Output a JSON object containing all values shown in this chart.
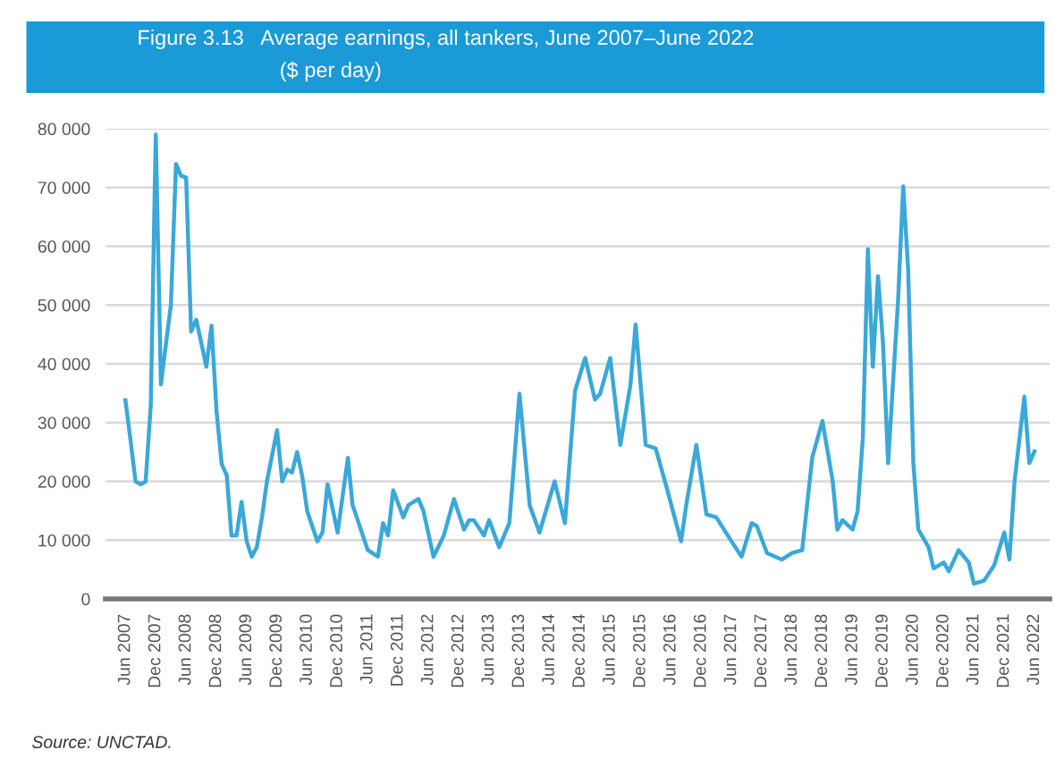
{
  "chart_data": {
    "type": "line",
    "title": "Figure 3.13   Average earnings, all tankers, June 2007–June 2022",
    "subtitle": "($ per day)",
    "annotations": [
      "Source: UNCTAD."
    ],
    "x": [
      "2007-06",
      "2007-07",
      "2007-08",
      "2007-09",
      "2007-10",
      "2007-11",
      "2007-12",
      "2008-01",
      "2008-02",
      "2008-03",
      "2008-04",
      "2008-05",
      "2008-06",
      "2008-07",
      "2008-08",
      "2008-09",
      "2008-10",
      "2008-11",
      "2008-12",
      "2009-01",
      "2009-02",
      "2009-03",
      "2009-04",
      "2009-05",
      "2009-06",
      "2009-07",
      "2009-08",
      "2009-09",
      "2009-10",
      "2009-12",
      "2010-01",
      "2010-02",
      "2010-03",
      "2010-04",
      "2010-05",
      "2010-06",
      "2010-08",
      "2010-09",
      "2010-10",
      "2010-12",
      "2011-02",
      "2011-03",
      "2011-04",
      "2011-06",
      "2011-08",
      "2011-09",
      "2011-10",
      "2011-11",
      "2012-01",
      "2012-02",
      "2012-04",
      "2012-05",
      "2012-07",
      "2012-09",
      "2012-11",
      "2013-01",
      "2013-02",
      "2013-03",
      "2013-05",
      "2013-06",
      "2013-08",
      "2013-10",
      "2013-12",
      "2014-02",
      "2014-04",
      "2014-07",
      "2014-09",
      "2014-11",
      "2015-01",
      "2015-03",
      "2015-04",
      "2015-06",
      "2015-08",
      "2015-10",
      "2015-11",
      "2016-01",
      "2016-03",
      "2016-05",
      "2016-08",
      "2016-09",
      "2016-11",
      "2017-01",
      "2017-03",
      "2017-06",
      "2017-08",
      "2017-10",
      "2017-11",
      "2018-01",
      "2018-04",
      "2018-06",
      "2018-08",
      "2018-10",
      "2018-12",
      "2019-02",
      "2019-03",
      "2019-04",
      "2019-06",
      "2019-07",
      "2019-08",
      "2019-09",
      "2019-10",
      "2019-11",
      "2019-12",
      "2020-01",
      "2020-03",
      "2020-04",
      "2020-05",
      "2020-06",
      "2020-07",
      "2020-09",
      "2020-10",
      "2020-12",
      "2021-01",
      "2021-03",
      "2021-05",
      "2021-06",
      "2021-08",
      "2021-10",
      "2021-12",
      "2022-01",
      "2022-02",
      "2022-04",
      "2022-05",
      "2022-06"
    ],
    "series": [
      {
        "color": "#3aa8d8",
        "values": [
          33800,
          27200,
          20000,
          19500,
          20000,
          33000,
          79000,
          36500,
          43500,
          50000,
          74000,
          72000,
          71700,
          45500,
          47500,
          43500,
          39500,
          46500,
          32000,
          23000,
          21000,
          10800,
          10800,
          16500,
          9800,
          7200,
          8800,
          13900,
          20000,
          28700,
          20000,
          22000,
          21500,
          25000,
          21000,
          14900,
          9800,
          11300,
          19500,
          11300,
          24000,
          16000,
          13400,
          8300,
          7200,
          12900,
          10800,
          18500,
          13900,
          16000,
          17000,
          15000,
          7200,
          10800,
          17000,
          11800,
          13400,
          13400,
          10800,
          13400,
          8800,
          12900,
          34900,
          15900,
          11300,
          20000,
          12900,
          35400,
          41000,
          33900,
          34900,
          41000,
          26200,
          36400,
          46700,
          26200,
          25600,
          19500,
          9800,
          15900,
          26200,
          14400,
          13900,
          9800,
          7200,
          12900,
          12400,
          7800,
          6700,
          7800,
          8300,
          24100,
          30300,
          20000,
          11800,
          13400,
          11800,
          14900,
          27200,
          59500,
          39500,
          54900,
          43600,
          23100,
          50800,
          70200,
          55900,
          23100,
          11800,
          8800,
          5200,
          6200,
          4700,
          8300,
          6200,
          2600,
          3100,
          5700,
          11300,
          6700,
          20000,
          34400,
          23100,
          25100
        ]
      }
    ],
    "xlim": [
      "2007-02",
      "2022-09"
    ],
    "xticks": [
      {
        "value": "2007-06",
        "label": "Jun 2007"
      },
      {
        "value": "2007-12",
        "label": "Dec 2007"
      },
      {
        "value": "2008-06",
        "label": "Jun 2008"
      },
      {
        "value": "2008-12",
        "label": "Dec 2008"
      },
      {
        "value": "2009-06",
        "label": "Jun 2009"
      },
      {
        "value": "2009-12",
        "label": "Dec 2009"
      },
      {
        "value": "2010-06",
        "label": "Jun 2010"
      },
      {
        "value": "2010-12",
        "label": "Dec 2010"
      },
      {
        "value": "2011-06",
        "label": "Jun 2011"
      },
      {
        "value": "2011-12",
        "label": "Dec 2011"
      },
      {
        "value": "2012-06",
        "label": "Jun 2012"
      },
      {
        "value": "2012-12",
        "label": "Dec 2012"
      },
      {
        "value": "2013-06",
        "label": "Jun 2013"
      },
      {
        "value": "2013-12",
        "label": "Dec 2013"
      },
      {
        "value": "2014-06",
        "label": "Jun 2014"
      },
      {
        "value": "2014-12",
        "label": "Dec 2014"
      },
      {
        "value": "2015-06",
        "label": "Jun 2015"
      },
      {
        "value": "2015-12",
        "label": "Dec 2015"
      },
      {
        "value": "2016-06",
        "label": "Jun 2016"
      },
      {
        "value": "2016-12",
        "label": "Dec 2016"
      },
      {
        "value": "2017-06",
        "label": "Jun 2017"
      },
      {
        "value": "2017-12",
        "label": "Dec 2017"
      },
      {
        "value": "2018-06",
        "label": "Jun 2018"
      },
      {
        "value": "2018-12",
        "label": "Dec 2018"
      },
      {
        "value": "2019-06",
        "label": "Jun 2019"
      },
      {
        "value": "2019-12",
        "label": "Dec 2019"
      },
      {
        "value": "2020-06",
        "label": "Jun 2020"
      },
      {
        "value": "2020-12",
        "label": "Dec 2020"
      },
      {
        "value": "2021-06",
        "label": "Jun 2021"
      },
      {
        "value": "2021-12",
        "label": "Dec 2021"
      },
      {
        "value": "2022-06",
        "label": "Jun 2022"
      }
    ],
    "ylim": [
      0,
      80000
    ],
    "yticks": [
      0,
      {
        "value": 10000,
        "label": "10 000"
      },
      {
        "value": 20000,
        "label": "20 000"
      },
      {
        "value": 30000,
        "label": "30 000"
      },
      {
        "value": 40000,
        "label": "40 000"
      },
      {
        "value": 50000,
        "label": "50 000"
      },
      {
        "value": 60000,
        "label": "60 000"
      },
      {
        "value": 70000,
        "label": "70 000"
      },
      {
        "value": 80000,
        "label": "80 000"
      }
    ],
    "grid": "y",
    "marker": "none",
    "line_style": "solid"
  }
}
